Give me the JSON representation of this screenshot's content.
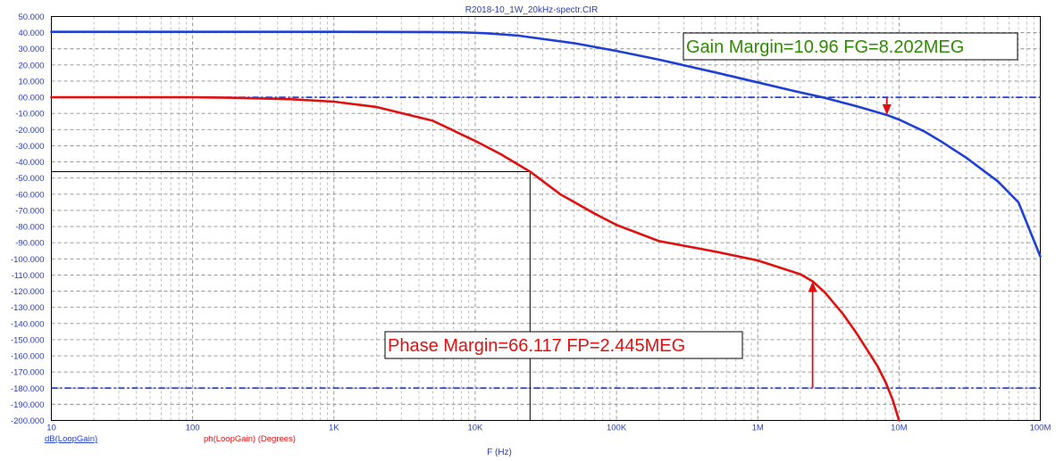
{
  "title": "R2018-10_1W_20kHz-spectr.CIR",
  "chart_data": {
    "type": "line",
    "x_scale": "log",
    "xlim": [
      10,
      100000000
    ],
    "ylim": [
      -200,
      50
    ],
    "xlabel": "F (Hz)",
    "x_tick_labels": [
      {
        "value": 10,
        "label": "10"
      },
      {
        "value": 100,
        "label": "100"
      },
      {
        "value": 1000,
        "label": "1K"
      },
      {
        "value": 10000,
        "label": "10K"
      },
      {
        "value": 100000,
        "label": "100K"
      },
      {
        "value": 1000000,
        "label": "1M"
      },
      {
        "value": 10000000,
        "label": "10M"
      },
      {
        "value": 100000000,
        "label": "100M"
      }
    ],
    "y_tick_labels": [
      {
        "value": 50,
        "label": "50.000"
      },
      {
        "value": 40,
        "label": "40.000"
      },
      {
        "value": 30,
        "label": "30.000"
      },
      {
        "value": 20,
        "label": "20.000"
      },
      {
        "value": 10,
        "label": "10.000"
      },
      {
        "value": 0,
        "label": "00.000"
      },
      {
        "value": -10,
        "label": "-10.000"
      },
      {
        "value": -20,
        "label": "-20.000"
      },
      {
        "value": -30,
        "label": "-30.000"
      },
      {
        "value": -40,
        "label": "-40.000"
      },
      {
        "value": -50,
        "label": "-50.000"
      },
      {
        "value": -60,
        "label": "-60.000"
      },
      {
        "value": -70,
        "label": "-70.000"
      },
      {
        "value": -80,
        "label": "-80.000"
      },
      {
        "value": -90,
        "label": "-90.000"
      },
      {
        "value": -100,
        "label": "-100.000"
      },
      {
        "value": -110,
        "label": "-110.000"
      },
      {
        "value": -120,
        "label": "-120.000"
      },
      {
        "value": -130,
        "label": "-130.000"
      },
      {
        "value": -140,
        "label": "-140.000"
      },
      {
        "value": -150,
        "label": "-150.000"
      },
      {
        "value": -160,
        "label": "-160.000"
      },
      {
        "value": -170,
        "label": "-170.000"
      },
      {
        "value": -180,
        "label": "-180.000"
      },
      {
        "value": -190,
        "label": "-190.000"
      },
      {
        "value": -200,
        "label": "-200.000"
      }
    ],
    "grid": true,
    "series": [
      {
        "name": "dB(LoopGain)",
        "color": "#1f3fd6",
        "x": [
          10,
          100,
          1000,
          5000,
          8000,
          12000,
          20000,
          50000,
          100000,
          200000,
          500000,
          1000000,
          2000000,
          3000000,
          5000000,
          8202000,
          10000000,
          15000000,
          20000000,
          30000000,
          50000000,
          70000000,
          100000000
        ],
        "y": [
          40.5,
          40.5,
          40.5,
          40.4,
          40.2,
          39.6,
          38.2,
          33.5,
          28.7,
          23.3,
          15.4,
          9.2,
          3.0,
          -0.4,
          -5.5,
          -10.96,
          -13.8,
          -21.0,
          -27.5,
          -37.5,
          -52.0,
          -65.0,
          -98.5
        ]
      },
      {
        "name": "ph(LoopGain) (Degrees)",
        "color": "#e01010",
        "x": [
          10,
          100,
          200,
          500,
          1000,
          2000,
          5000,
          10000,
          15000,
          24450,
          40000,
          70000,
          100000,
          200000,
          500000,
          1000000,
          1500000,
          2000000,
          2445000,
          3000000,
          4000000,
          5000000,
          7000000,
          8000000,
          9000000,
          10000000
        ],
        "y": [
          0,
          0,
          -0.3,
          -1.2,
          -2.7,
          -6.0,
          -14.5,
          -27.0,
          -35.0,
          -46.0,
          -60.0,
          -72.0,
          -79.0,
          -89.0,
          -95.5,
          -101.0,
          -106.0,
          -109.5,
          -113.9,
          -121.0,
          -134.0,
          -146.0,
          -166.0,
          -176.0,
          -187.0,
          -200.0
        ]
      }
    ],
    "reference_lines": [
      {
        "y": 0,
        "color": "#1f3fd6"
      },
      {
        "y": -180,
        "color": "#1f3fd6"
      }
    ],
    "cursor": {
      "x": 24450,
      "y": -46.0
    },
    "annotations": [
      {
        "text": "Gain Margin=10.96 FG=8.202MEG",
        "color": "#2e8b00",
        "arrow_x": 8202000,
        "arrow_from": 0,
        "arrow_to": -10.96
      },
      {
        "text": "Phase Margin=66.117 FP=2.445MEG",
        "color": "#e01010",
        "arrow_x": 2445000,
        "arrow_from": -180,
        "arrow_to": -113.9
      }
    ],
    "legend": [
      {
        "text": "dB(LoopGain)",
        "color": "#1f3fd6"
      },
      {
        "text": "ph(LoopGain) (Degrees)",
        "color": "#e01010"
      }
    ]
  }
}
